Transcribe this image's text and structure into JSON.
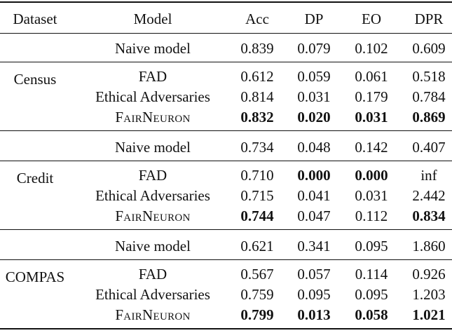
{
  "table": {
    "headers": [
      "Dataset",
      "Model",
      "Acc",
      "DP",
      "EO",
      "DPR"
    ],
    "groups": [
      {
        "dataset": "Census",
        "rows": [
          {
            "model": "Naive model",
            "values": [
              "0.839",
              "0.079",
              "0.102",
              "0.609"
            ],
            "bold": [
              false,
              false,
              false,
              false
            ],
            "smallcaps": false
          },
          {
            "model": "FAD",
            "values": [
              "0.612",
              "0.059",
              "0.061",
              "0.518"
            ],
            "bold": [
              false,
              false,
              false,
              false
            ],
            "smallcaps": false
          },
          {
            "model": "Ethical Adversaries",
            "values": [
              "0.814",
              "0.031",
              "0.179",
              "0.784"
            ],
            "bold": [
              false,
              false,
              false,
              false
            ],
            "smallcaps": false
          },
          {
            "model": "FairNeuron",
            "values": [
              "0.832",
              "0.020",
              "0.031",
              "0.869"
            ],
            "bold": [
              true,
              true,
              true,
              true
            ],
            "smallcaps": true
          }
        ]
      },
      {
        "dataset": "Credit",
        "rows": [
          {
            "model": "Naive model",
            "values": [
              "0.734",
              "0.048",
              "0.142",
              "0.407"
            ],
            "bold": [
              false,
              false,
              false,
              false
            ],
            "smallcaps": false
          },
          {
            "model": "FAD",
            "values": [
              "0.710",
              "0.000",
              "0.000",
              "inf"
            ],
            "bold": [
              false,
              true,
              true,
              false
            ],
            "smallcaps": false
          },
          {
            "model": "Ethical Adversaries",
            "values": [
              "0.715",
              "0.041",
              "0.031",
              "2.442"
            ],
            "bold": [
              false,
              false,
              false,
              false
            ],
            "smallcaps": false
          },
          {
            "model": "FairNeuron",
            "values": [
              "0.744",
              "0.047",
              "0.112",
              "0.834"
            ],
            "bold": [
              true,
              false,
              false,
              true
            ],
            "smallcaps": true
          }
        ]
      },
      {
        "dataset": "COMPAS",
        "rows": [
          {
            "model": "Naive model",
            "values": [
              "0.621",
              "0.341",
              "0.095",
              "1.860"
            ],
            "bold": [
              false,
              false,
              false,
              false
            ],
            "smallcaps": false
          },
          {
            "model": "FAD",
            "values": [
              "0.567",
              "0.057",
              "0.114",
              "0.926"
            ],
            "bold": [
              false,
              false,
              false,
              false
            ],
            "smallcaps": false
          },
          {
            "model": "Ethical Adversaries",
            "values": [
              "0.759",
              "0.095",
              "0.095",
              "1.203"
            ],
            "bold": [
              false,
              false,
              false,
              false
            ],
            "smallcaps": false
          },
          {
            "model": "FairNeuron",
            "values": [
              "0.799",
              "0.013",
              "0.058",
              "1.021"
            ],
            "bold": [
              true,
              true,
              true,
              true
            ],
            "smallcaps": true
          }
        ]
      }
    ]
  }
}
